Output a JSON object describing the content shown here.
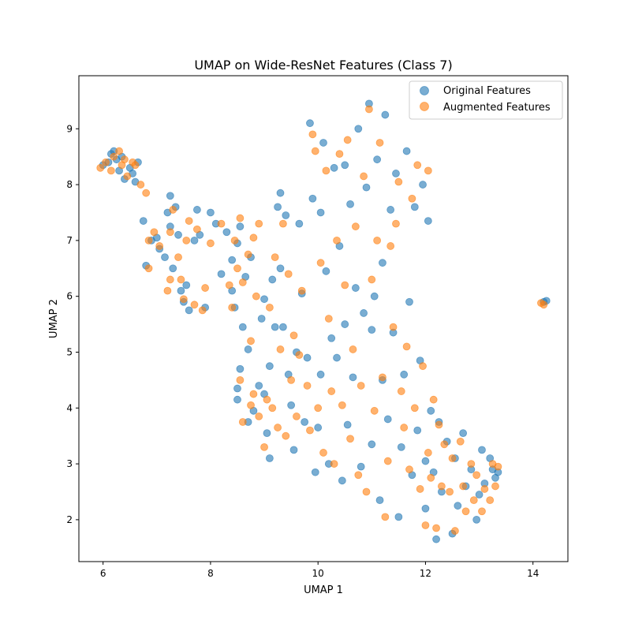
{
  "chart_data": {
    "type": "scatter",
    "title": "UMAP on Wide-ResNet Features (Class 7)",
    "xlabel": "UMAP 1",
    "ylabel": "UMAP 2",
    "xlim": [
      5.55,
      14.65
    ],
    "ylim": [
      1.25,
      9.95
    ],
    "xticks": [
      6,
      8,
      10,
      12,
      14
    ],
    "yticks": [
      2,
      3,
      4,
      5,
      6,
      7,
      8,
      9
    ],
    "grid": false,
    "legend_position": "top-right",
    "series": [
      {
        "name": "Original Features",
        "color": "#1f77b4",
        "alpha": 0.6,
        "points": [
          [
            6.0,
            8.35
          ],
          [
            6.1,
            8.4
          ],
          [
            6.15,
            8.55
          ],
          [
            6.2,
            8.6
          ],
          [
            6.25,
            8.45
          ],
          [
            6.3,
            8.25
          ],
          [
            6.35,
            8.5
          ],
          [
            6.4,
            8.1
          ],
          [
            6.5,
            8.3
          ],
          [
            6.55,
            8.2
          ],
          [
            6.6,
            8.05
          ],
          [
            6.65,
            8.4
          ],
          [
            6.75,
            7.35
          ],
          [
            6.8,
            6.55
          ],
          [
            6.9,
            7.0
          ],
          [
            7.0,
            7.05
          ],
          [
            7.05,
            6.85
          ],
          [
            7.15,
            6.7
          ],
          [
            7.2,
            7.5
          ],
          [
            7.25,
            7.25
          ],
          [
            7.25,
            7.8
          ],
          [
            7.3,
            6.5
          ],
          [
            7.35,
            7.6
          ],
          [
            7.4,
            7.1
          ],
          [
            7.45,
            6.1
          ],
          [
            7.5,
            5.9
          ],
          [
            7.55,
            6.2
          ],
          [
            7.6,
            5.75
          ],
          [
            7.7,
            7.0
          ],
          [
            7.75,
            7.55
          ],
          [
            7.8,
            7.1
          ],
          [
            7.9,
            5.8
          ],
          [
            8.0,
            7.5
          ],
          [
            8.1,
            7.3
          ],
          [
            8.2,
            6.4
          ],
          [
            8.3,
            7.15
          ],
          [
            8.4,
            6.65
          ],
          [
            8.4,
            6.1
          ],
          [
            8.45,
            5.8
          ],
          [
            8.5,
            6.95
          ],
          [
            8.55,
            7.25
          ],
          [
            8.6,
            5.45
          ],
          [
            8.65,
            6.35
          ],
          [
            8.7,
            5.05
          ],
          [
            8.75,
            6.7
          ],
          [
            8.5,
            4.35
          ],
          [
            8.5,
            4.15
          ],
          [
            8.55,
            4.7
          ],
          [
            8.7,
            3.75
          ],
          [
            8.8,
            3.95
          ],
          [
            8.9,
            4.4
          ],
          [
            8.95,
            5.6
          ],
          [
            9.0,
            5.95
          ],
          [
            9.0,
            4.25
          ],
          [
            9.05,
            3.55
          ],
          [
            9.1,
            3.1
          ],
          [
            9.1,
            4.75
          ],
          [
            9.15,
            6.3
          ],
          [
            9.2,
            5.45
          ],
          [
            9.25,
            7.6
          ],
          [
            9.3,
            7.85
          ],
          [
            9.3,
            6.5
          ],
          [
            9.35,
            5.45
          ],
          [
            9.4,
            7.45
          ],
          [
            9.45,
            4.6
          ],
          [
            9.5,
            4.05
          ],
          [
            9.55,
            3.25
          ],
          [
            9.6,
            5.0
          ],
          [
            9.65,
            7.3
          ],
          [
            9.7,
            6.05
          ],
          [
            9.75,
            3.75
          ],
          [
            9.8,
            4.9
          ],
          [
            9.85,
            9.1
          ],
          [
            9.9,
            7.75
          ],
          [
            9.95,
            2.85
          ],
          [
            10.0,
            3.65
          ],
          [
            10.05,
            7.5
          ],
          [
            10.05,
            4.6
          ],
          [
            10.1,
            8.75
          ],
          [
            10.15,
            6.45
          ],
          [
            10.2,
            3.0
          ],
          [
            10.25,
            5.25
          ],
          [
            10.3,
            8.3
          ],
          [
            10.35,
            4.9
          ],
          [
            10.4,
            6.9
          ],
          [
            10.45,
            2.7
          ],
          [
            10.5,
            5.5
          ],
          [
            10.5,
            8.35
          ],
          [
            10.55,
            3.7
          ],
          [
            10.6,
            7.65
          ],
          [
            10.65,
            4.55
          ],
          [
            10.7,
            6.15
          ],
          [
            10.75,
            9.0
          ],
          [
            10.8,
            2.95
          ],
          [
            10.85,
            5.7
          ],
          [
            10.9,
            7.95
          ],
          [
            10.95,
            9.45
          ],
          [
            11.0,
            3.35
          ],
          [
            11.0,
            5.4
          ],
          [
            11.05,
            6.0
          ],
          [
            11.1,
            8.45
          ],
          [
            11.15,
            2.35
          ],
          [
            11.2,
            4.5
          ],
          [
            11.2,
            6.6
          ],
          [
            11.25,
            9.25
          ],
          [
            11.3,
            3.8
          ],
          [
            11.35,
            7.55
          ],
          [
            11.4,
            5.35
          ],
          [
            11.45,
            8.2
          ],
          [
            11.5,
            2.05
          ],
          [
            11.55,
            3.3
          ],
          [
            11.6,
            4.6
          ],
          [
            11.65,
            8.6
          ],
          [
            11.7,
            5.9
          ],
          [
            11.75,
            2.8
          ],
          [
            11.8,
            7.6
          ],
          [
            11.85,
            3.6
          ],
          [
            11.9,
            4.85
          ],
          [
            11.95,
            8.0
          ],
          [
            12.0,
            2.2
          ],
          [
            12.05,
            7.35
          ],
          [
            12.0,
            3.05
          ],
          [
            12.1,
            3.95
          ],
          [
            12.15,
            2.85
          ],
          [
            12.2,
            1.65
          ],
          [
            12.25,
            3.75
          ],
          [
            12.3,
            2.5
          ],
          [
            12.4,
            3.4
          ],
          [
            12.5,
            1.75
          ],
          [
            12.55,
            3.1
          ],
          [
            12.6,
            2.25
          ],
          [
            12.7,
            3.55
          ],
          [
            12.75,
            2.6
          ],
          [
            12.85,
            2.9
          ],
          [
            12.95,
            2.0
          ],
          [
            13.0,
            2.45
          ],
          [
            13.05,
            3.25
          ],
          [
            13.1,
            2.65
          ],
          [
            13.2,
            3.1
          ],
          [
            13.25,
            2.9
          ],
          [
            13.3,
            2.75
          ],
          [
            13.35,
            2.85
          ],
          [
            14.2,
            5.9
          ],
          [
            14.25,
            5.92
          ]
        ]
      },
      {
        "name": "Augmented Features",
        "color": "#ff7f0e",
        "alpha": 0.6,
        "points": [
          [
            5.95,
            8.3
          ],
          [
            6.05,
            8.4
          ],
          [
            6.15,
            8.25
          ],
          [
            6.2,
            8.5
          ],
          [
            6.3,
            8.6
          ],
          [
            6.35,
            8.35
          ],
          [
            6.4,
            8.45
          ],
          [
            6.45,
            8.15
          ],
          [
            6.55,
            8.4
          ],
          [
            6.6,
            8.35
          ],
          [
            6.7,
            8.0
          ],
          [
            6.8,
            7.85
          ],
          [
            6.85,
            7.0
          ],
          [
            6.85,
            6.5
          ],
          [
            6.95,
            7.15
          ],
          [
            7.05,
            6.9
          ],
          [
            7.2,
            6.1
          ],
          [
            7.25,
            6.3
          ],
          [
            7.25,
            7.15
          ],
          [
            7.3,
            7.55
          ],
          [
            7.4,
            6.7
          ],
          [
            7.45,
            6.3
          ],
          [
            7.5,
            5.95
          ],
          [
            7.55,
            7.0
          ],
          [
            7.6,
            7.35
          ],
          [
            7.7,
            5.85
          ],
          [
            7.75,
            7.2
          ],
          [
            7.85,
            5.75
          ],
          [
            7.9,
            6.15
          ],
          [
            8.0,
            6.95
          ],
          [
            8.2,
            7.3
          ],
          [
            8.35,
            6.2
          ],
          [
            8.4,
            5.8
          ],
          [
            8.45,
            7.0
          ],
          [
            8.5,
            6.5
          ],
          [
            8.55,
            7.4
          ],
          [
            8.6,
            6.25
          ],
          [
            8.7,
            6.75
          ],
          [
            8.75,
            5.2
          ],
          [
            8.8,
            7.05
          ],
          [
            8.85,
            6.0
          ],
          [
            8.9,
            7.3
          ],
          [
            8.55,
            4.5
          ],
          [
            8.6,
            3.75
          ],
          [
            8.75,
            4.05
          ],
          [
            8.8,
            4.25
          ],
          [
            8.9,
            3.85
          ],
          [
            9.0,
            3.3
          ],
          [
            9.05,
            4.15
          ],
          [
            9.1,
            5.8
          ],
          [
            9.15,
            4.0
          ],
          [
            9.2,
            6.7
          ],
          [
            9.25,
            3.65
          ],
          [
            9.3,
            5.05
          ],
          [
            9.35,
            7.3
          ],
          [
            9.4,
            3.5
          ],
          [
            9.45,
            6.4
          ],
          [
            9.5,
            4.5
          ],
          [
            9.55,
            5.3
          ],
          [
            9.6,
            3.85
          ],
          [
            9.65,
            4.95
          ],
          [
            9.7,
            6.1
          ],
          [
            9.8,
            4.4
          ],
          [
            9.85,
            3.6
          ],
          [
            9.9,
            8.9
          ],
          [
            9.95,
            8.6
          ],
          [
            10.0,
            4.0
          ],
          [
            10.05,
            6.6
          ],
          [
            10.1,
            3.2
          ],
          [
            10.15,
            8.25
          ],
          [
            10.2,
            5.6
          ],
          [
            10.25,
            4.3
          ],
          [
            10.3,
            3.0
          ],
          [
            10.35,
            7.0
          ],
          [
            10.4,
            8.55
          ],
          [
            10.45,
            4.05
          ],
          [
            10.5,
            6.2
          ],
          [
            10.55,
            8.8
          ],
          [
            10.6,
            3.45
          ],
          [
            10.65,
            5.05
          ],
          [
            10.7,
            7.25
          ],
          [
            10.75,
            2.8
          ],
          [
            10.8,
            4.4
          ],
          [
            10.85,
            8.15
          ],
          [
            10.9,
            2.5
          ],
          [
            10.95,
            9.35
          ],
          [
            11.0,
            6.3
          ],
          [
            11.05,
            3.95
          ],
          [
            11.1,
            7.0
          ],
          [
            11.15,
            8.75
          ],
          [
            11.2,
            4.55
          ],
          [
            11.25,
            2.05
          ],
          [
            11.3,
            3.05
          ],
          [
            11.35,
            6.9
          ],
          [
            11.4,
            5.45
          ],
          [
            11.45,
            7.3
          ],
          [
            11.5,
            8.05
          ],
          [
            11.55,
            4.3
          ],
          [
            11.6,
            3.65
          ],
          [
            11.65,
            5.1
          ],
          [
            11.7,
            2.9
          ],
          [
            11.75,
            7.75
          ],
          [
            11.8,
            4.0
          ],
          [
            11.85,
            8.35
          ],
          [
            11.9,
            2.55
          ],
          [
            11.95,
            4.75
          ],
          [
            12.0,
            1.9
          ],
          [
            12.05,
            8.25
          ],
          [
            12.05,
            3.2
          ],
          [
            12.1,
            2.75
          ],
          [
            12.15,
            4.15
          ],
          [
            12.2,
            1.85
          ],
          [
            12.25,
            3.7
          ],
          [
            12.3,
            2.6
          ],
          [
            12.35,
            3.35
          ],
          [
            12.45,
            2.5
          ],
          [
            12.5,
            3.1
          ],
          [
            12.55,
            1.8
          ],
          [
            12.65,
            3.4
          ],
          [
            12.7,
            2.6
          ],
          [
            12.75,
            2.15
          ],
          [
            12.85,
            3.0
          ],
          [
            12.9,
            2.35
          ],
          [
            12.95,
            2.8
          ],
          [
            13.05,
            2.15
          ],
          [
            13.1,
            2.55
          ],
          [
            13.2,
            2.35
          ],
          [
            13.25,
            3.0
          ],
          [
            13.3,
            2.6
          ],
          [
            13.35,
            2.95
          ],
          [
            14.15,
            5.88
          ],
          [
            14.2,
            5.85
          ]
        ]
      }
    ]
  }
}
